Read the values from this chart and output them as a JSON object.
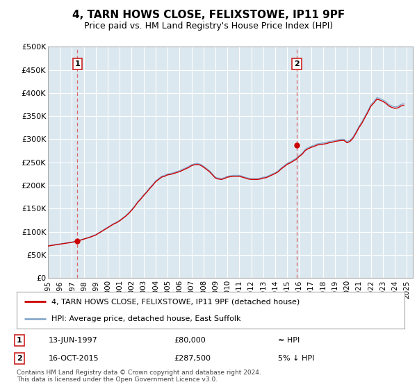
{
  "title": "4, TARN HOWS CLOSE, FELIXSTOWE, IP11 9PF",
  "subtitle": "Price paid vs. HM Land Registry's House Price Index (HPI)",
  "fig_bg_color": "#ffffff",
  "plot_bg_color": "#dce8f0",
  "ylim": [
    0,
    500000
  ],
  "yticks": [
    0,
    50000,
    100000,
    150000,
    200000,
    250000,
    300000,
    350000,
    400000,
    450000,
    500000
  ],
  "ytick_labels": [
    "£0",
    "£50K",
    "£100K",
    "£150K",
    "£200K",
    "£250K",
    "£300K",
    "£350K",
    "£400K",
    "£450K",
    "£500K"
  ],
  "xlim_start": 1995.0,
  "xlim_end": 2025.5,
  "sale1_year": 1997.45,
  "sale1_price": 80000,
  "sale1_label": "1",
  "sale1_date": "13-JUN-1997",
  "sale1_amount": "£80,000",
  "sale1_note": "≈ HPI",
  "sale2_year": 2015.79,
  "sale2_price": 287500,
  "sale2_label": "2",
  "sale2_date": "16-OCT-2015",
  "sale2_amount": "£287,500",
  "sale2_note": "5% ↓ HPI",
  "red_line_color": "#cc0000",
  "blue_line_color": "#88aacc",
  "dashed_line_color": "#dd6666",
  "marker_color": "#cc0000",
  "grid_color": "#ffffff",
  "legend_label_red": "4, TARN HOWS CLOSE, FELIXSTOWE, IP11 9PF (detached house)",
  "legend_label_blue": "HPI: Average price, detached house, East Suffolk",
  "footer": "Contains HM Land Registry data © Crown copyright and database right 2024.\nThis data is licensed under the Open Government Licence v3.0.",
  "hpi_data_x": [
    1995.0,
    1995.25,
    1995.5,
    1995.75,
    1996.0,
    1996.25,
    1996.5,
    1996.75,
    1997.0,
    1997.25,
    1997.5,
    1997.75,
    1998.0,
    1998.25,
    1998.5,
    1998.75,
    1999.0,
    1999.25,
    1999.5,
    1999.75,
    2000.0,
    2000.25,
    2000.5,
    2000.75,
    2001.0,
    2001.25,
    2001.5,
    2001.75,
    2002.0,
    2002.25,
    2002.5,
    2002.75,
    2003.0,
    2003.25,
    2003.5,
    2003.75,
    2004.0,
    2004.25,
    2004.5,
    2004.75,
    2005.0,
    2005.25,
    2005.5,
    2005.75,
    2006.0,
    2006.25,
    2006.5,
    2006.75,
    2007.0,
    2007.25,
    2007.5,
    2007.75,
    2008.0,
    2008.25,
    2008.5,
    2008.75,
    2009.0,
    2009.25,
    2009.5,
    2009.75,
    2010.0,
    2010.25,
    2010.5,
    2010.75,
    2011.0,
    2011.25,
    2011.5,
    2011.75,
    2012.0,
    2012.25,
    2012.5,
    2012.75,
    2013.0,
    2013.25,
    2013.5,
    2013.75,
    2014.0,
    2014.25,
    2014.5,
    2014.75,
    2015.0,
    2015.25,
    2015.5,
    2015.75,
    2016.0,
    2016.25,
    2016.5,
    2016.75,
    2017.0,
    2017.25,
    2017.5,
    2017.75,
    2018.0,
    2018.25,
    2018.5,
    2018.75,
    2019.0,
    2019.25,
    2019.5,
    2019.75,
    2020.0,
    2020.25,
    2020.5,
    2020.75,
    2021.0,
    2021.25,
    2021.5,
    2021.75,
    2022.0,
    2022.25,
    2022.5,
    2022.75,
    2023.0,
    2023.25,
    2023.5,
    2023.75,
    2024.0,
    2024.25,
    2024.5,
    2024.75
  ],
  "hpi_data_y": [
    70000,
    71000,
    72000,
    73000,
    74000,
    75000,
    76000,
    77000,
    78000,
    79500,
    81000,
    83000,
    85000,
    87000,
    89000,
    91500,
    94000,
    98000,
    102000,
    106000,
    110000,
    114000,
    118000,
    121000,
    125000,
    130000,
    135000,
    141000,
    148000,
    156000,
    165000,
    172000,
    180000,
    187000,
    195000,
    202000,
    210000,
    215000,
    220000,
    222000,
    225000,
    226000,
    228000,
    230000,
    232000,
    235000,
    238000,
    241000,
    245000,
    247000,
    248000,
    246000,
    242000,
    237000,
    232000,
    225000,
    218000,
    216000,
    215000,
    217000,
    220000,
    221000,
    222000,
    222000,
    222000,
    220000,
    218000,
    216000,
    215000,
    215000,
    215000,
    216000,
    218000,
    219000,
    222000,
    225000,
    228000,
    232000,
    238000,
    243000,
    248000,
    251000,
    255000,
    259000,
    265000,
    270000,
    278000,
    282000,
    285000,
    287000,
    290000,
    291000,
    292000,
    293000,
    295000,
    296000,
    298000,
    299000,
    300000,
    300000,
    295000,
    298000,
    305000,
    316000,
    328000,
    338000,
    350000,
    362000,
    375000,
    382000,
    390000,
    388000,
    385000,
    381000,
    375000,
    372000,
    370000,
    371000,
    375000,
    377000
  ]
}
